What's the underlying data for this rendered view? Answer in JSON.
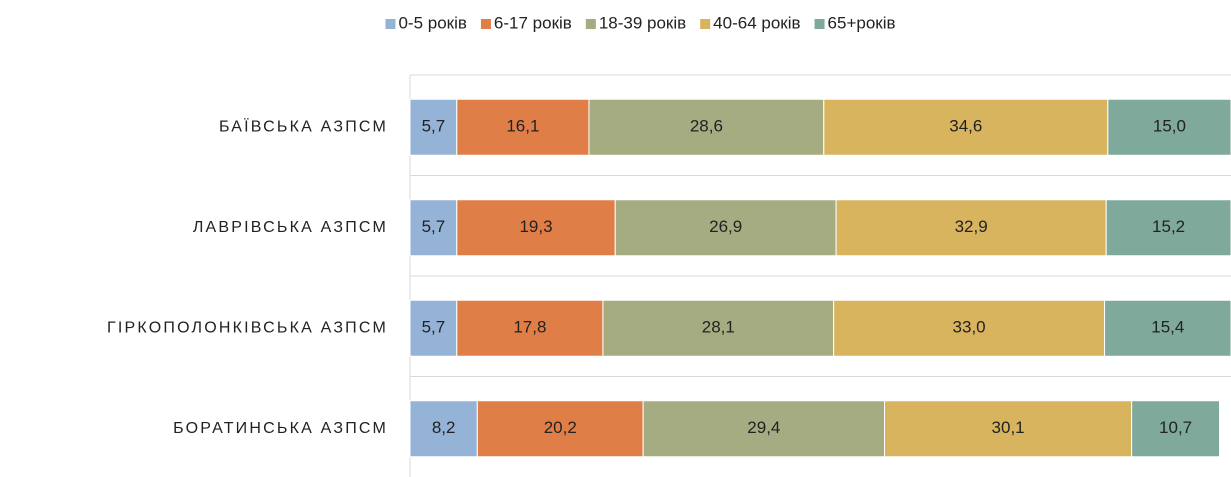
{
  "chart_data": {
    "type": "stacked-barh",
    "categories": [
      "БАЇВСЬКА АЗПСМ",
      "ЛАВРІВСЬКА АЗПСМ",
      "ГІРКОПОЛОНКІВСЬКА АЗПСМ",
      "БОРАТИНСЬКА АЗПСМ"
    ],
    "series": [
      {
        "name": "0-5 років",
        "color": "#95b3d7",
        "values": [
          5.7,
          5.7,
          5.7,
          8.2
        ],
        "value_labels": [
          "5,7",
          "5,7",
          "5,7",
          "8,2"
        ]
      },
      {
        "name": "6-17 років",
        "color": "#e07e48",
        "values": [
          16.1,
          19.3,
          17.8,
          20.2
        ],
        "value_labels": [
          "16,1",
          "19,3",
          "17,8",
          "20,2"
        ]
      },
      {
        "name": "18-39 років",
        "color": "#a5ac82",
        "values": [
          28.6,
          26.9,
          28.1,
          29.4
        ],
        "value_labels": [
          "28,6",
          "26,9",
          "28,1",
          "29,4"
        ]
      },
      {
        "name": "40-64 років",
        "color": "#d9b45e",
        "values": [
          34.6,
          32.9,
          33.0,
          30.1
        ],
        "value_labels": [
          "34,6",
          "32,9",
          "33,0",
          "30,1"
        ]
      },
      {
        "name": "65+років",
        "color": "#7fa99a",
        "values": [
          15.0,
          15.2,
          15.4,
          10.7
        ],
        "value_labels": [
          "15,0",
          "15,2",
          "15,4",
          "10,7"
        ]
      }
    ],
    "xlim": [
      0,
      100
    ],
    "legend": "top"
  }
}
